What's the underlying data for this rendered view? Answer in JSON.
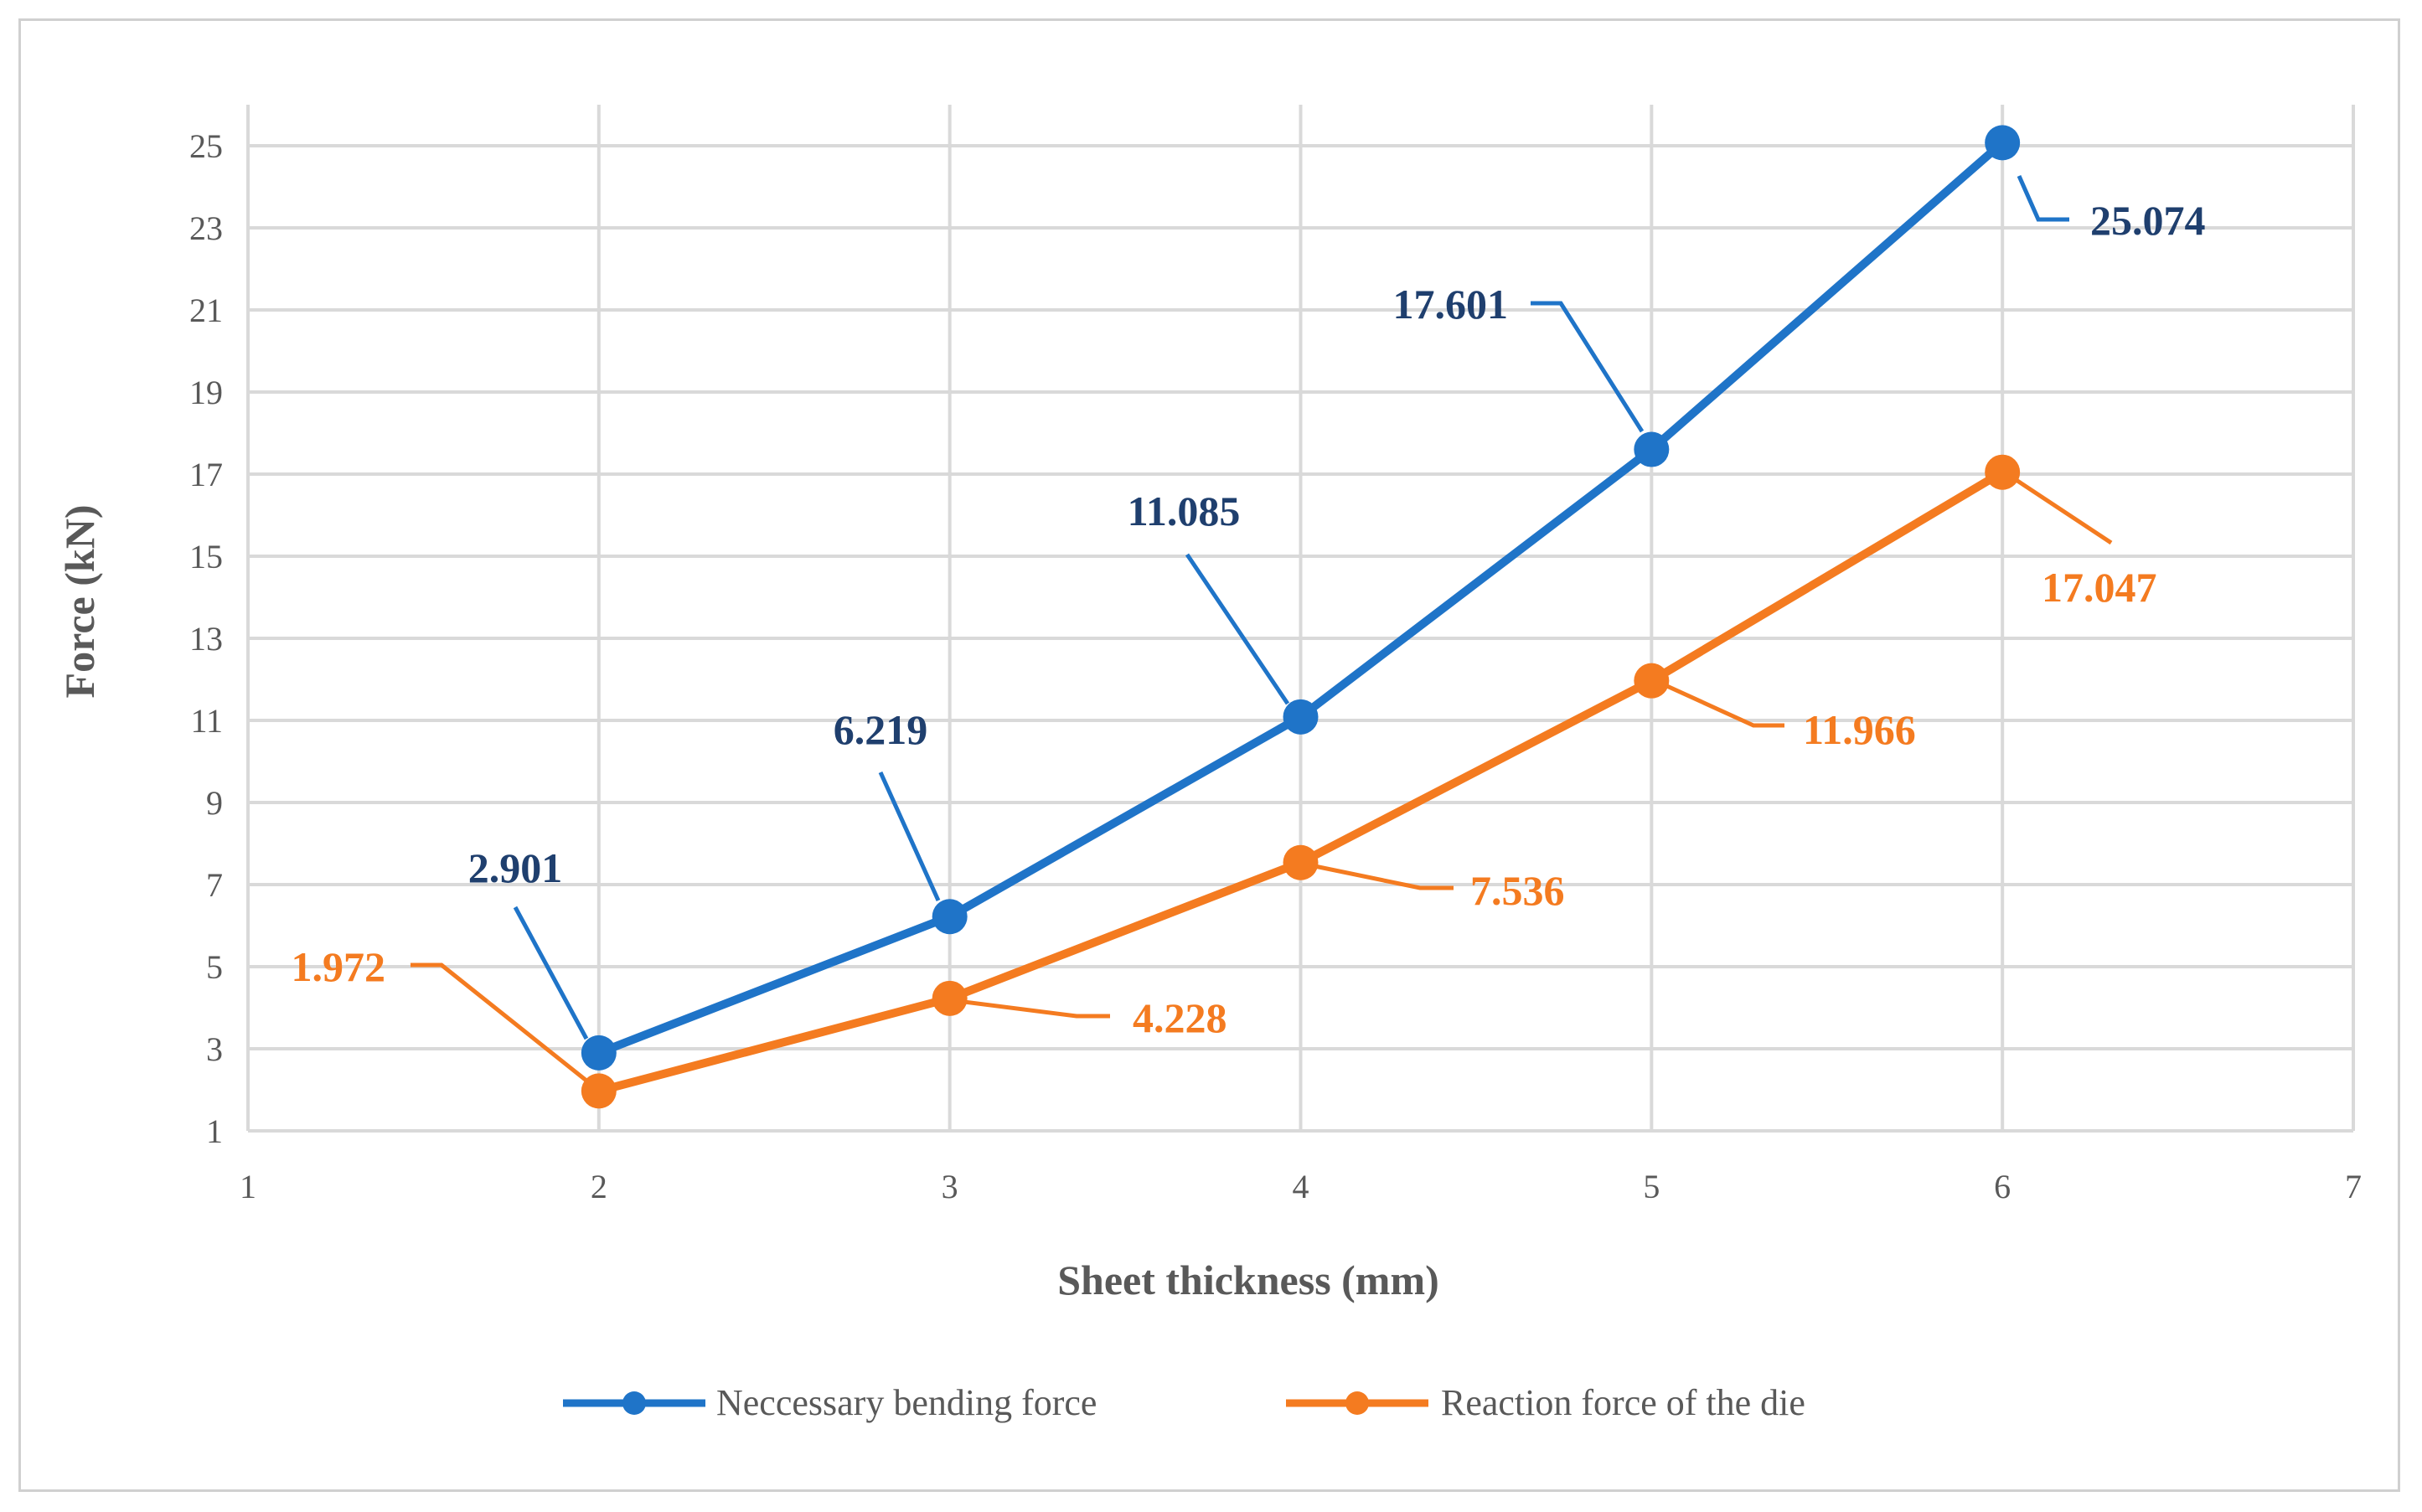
{
  "chart_data": {
    "type": "line",
    "title": "",
    "xlabel": "Sheet thickness (mm)",
    "ylabel": "Force (kN)",
    "xlim": [
      1,
      7
    ],
    "ylim": [
      1,
      26
    ],
    "xticks": [
      1,
      2,
      3,
      4,
      5,
      6,
      7
    ],
    "yticks": [
      1,
      3,
      5,
      7,
      9,
      11,
      13,
      15,
      17,
      19,
      21,
      23,
      25
    ],
    "grid": true,
    "legend_position": "bottom",
    "x": [
      2,
      3,
      4,
      5,
      6
    ],
    "series": [
      {
        "name": "Neccessary bending force",
        "color": "#1f74c8",
        "label_color": "#1f3f6e",
        "values": [
          2.901,
          6.219,
          11.085,
          17.601,
          25.074
        ],
        "labels": [
          "2.901",
          "6.219",
          "11.085",
          "17.601",
          "25.074"
        ]
      },
      {
        "name": "Reaction force of the die",
        "color": "#f47b20",
        "label_color": "#f47b20",
        "values": [
          1.972,
          4.228,
          7.536,
          11.966,
          17.047
        ],
        "labels": [
          "1.972",
          "4.228",
          "7.536",
          "11.966",
          "17.047"
        ]
      }
    ]
  }
}
